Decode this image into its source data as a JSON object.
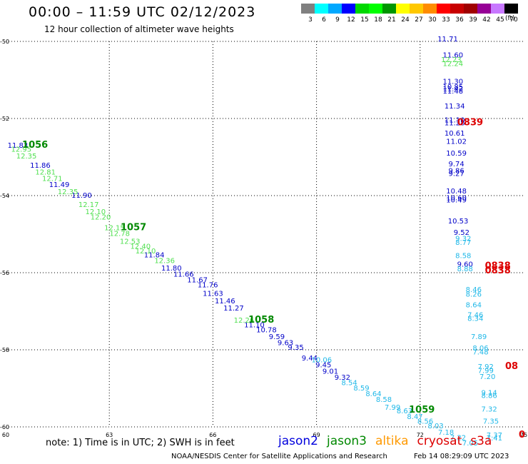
{
  "header": {
    "title": "00:00 – 11:59 UTC 02/12/2023",
    "subtitle": "12 hour collection of altimeter wave heights"
  },
  "colorbar": {
    "labels": [
      "3",
      "6",
      "9",
      "12",
      "15",
      "18",
      "21",
      "24",
      "27",
      "30",
      "33",
      "36",
      "39",
      "42",
      "45",
      "70"
    ],
    "colors": [
      "#808080",
      "#00ffff",
      "#00a8ff",
      "#0000ff",
      "#00d800",
      "#00ff00",
      "#009600",
      "#ffff00",
      "#ffc800",
      "#ff8c00",
      "#ff0000",
      "#c80000",
      "#a00000",
      "#960096",
      "#c878ff",
      "#000000"
    ],
    "unit": "(ft)"
  },
  "footer": {
    "note": "note: 1) Time is in UTC; 2) SWH is in feet",
    "credit": "NOAA/NESDIS Center for Satellite Applications and Research",
    "timestamp": "Feb 14 08:29:09 UTC 2023"
  },
  "legend": [
    {
      "name": "jason2",
      "color": "#0000dd"
    },
    {
      "name": "jason3",
      "color": "#008800"
    },
    {
      "name": "altika",
      "color": "#ff9900"
    },
    {
      "name": "cryosat",
      "color": "#dd0000"
    },
    {
      "name": "s3a",
      "color": "#dd0000"
    }
  ],
  "chart_data": {
    "type": "scatter",
    "xlim": [
      60,
      75
    ],
    "ylim": [
      -60,
      -50
    ],
    "x_ticks": [
      "60",
      "63",
      "66",
      "69",
      "72",
      "75"
    ],
    "y_ticks": [
      "-50",
      "-52",
      "-54",
      "-56",
      "-58",
      "-60"
    ],
    "grid": true,
    "series": [
      {
        "color": "#0000c8",
        "points": [
          {
            "x": 60.35,
            "y": -52.76,
            "v": "11.83"
          },
          {
            "x": 61.0,
            "y": -53.28,
            "v": "11.86"
          },
          {
            "x": 61.55,
            "y": -53.78,
            "v": "11.49"
          },
          {
            "x": 62.2,
            "y": -54.06,
            "v": "11.90"
          },
          {
            "x": 64.3,
            "y": -55.6,
            "v": "11.84"
          },
          {
            "x": 64.8,
            "y": -55.94,
            "v": "11.80"
          },
          {
            "x": 65.15,
            "y": -56.1,
            "v": "11.66"
          },
          {
            "x": 65.55,
            "y": -56.25,
            "v": "11.67"
          },
          {
            "x": 65.85,
            "y": -56.38,
            "v": "11.76"
          },
          {
            "x": 66.0,
            "y": -56.6,
            "v": "11.63"
          },
          {
            "x": 66.35,
            "y": -56.8,
            "v": "11.46"
          },
          {
            "x": 66.6,
            "y": -56.98,
            "v": "11.27"
          },
          {
            "x": 67.2,
            "y": -57.42,
            "v": "11.10"
          },
          {
            "x": 67.55,
            "y": -57.55,
            "v": "10.78"
          },
          {
            "x": 67.85,
            "y": -57.72,
            "v": "9.59"
          },
          {
            "x": 68.1,
            "y": -57.88,
            "v": "9.63"
          },
          {
            "x": 68.4,
            "y": -58.0,
            "v": "9.35"
          },
          {
            "x": 68.8,
            "y": -58.28,
            "v": "9.44"
          },
          {
            "x": 69.2,
            "y": -58.45,
            "v": "9.45"
          },
          {
            "x": 69.4,
            "y": -58.62,
            "v": "9.01"
          },
          {
            "x": 69.75,
            "y": -58.78,
            "v": "9.32"
          },
          {
            "x": 72.8,
            "y": -50.0,
            "v": "11.71"
          },
          {
            "x": 72.95,
            "y": -50.42,
            "v": "11.60"
          },
          {
            "x": 72.95,
            "y": -51.1,
            "v": "11.30"
          },
          {
            "x": 72.95,
            "y": -51.24,
            "v": "10.85"
          },
          {
            "x": 72.95,
            "y": -51.3,
            "v": "11.42"
          },
          {
            "x": 72.95,
            "y": -51.35,
            "v": "11.48"
          },
          {
            "x": 73.0,
            "y": -51.74,
            "v": "11.34"
          },
          {
            "x": 73.0,
            "y": -52.1,
            "v": "11.10"
          },
          {
            "x": 73.0,
            "y": -52.18,
            "v": "11.28"
          },
          {
            "x": 73.0,
            "y": -52.44,
            "v": "10.61"
          },
          {
            "x": 73.05,
            "y": -52.66,
            "v": "11.02"
          },
          {
            "x": 73.05,
            "y": -52.96,
            "v": "10.59"
          },
          {
            "x": 73.05,
            "y": -53.24,
            "v": "9.74"
          },
          {
            "x": 73.05,
            "y": -53.42,
            "v": "9.86"
          },
          {
            "x": 73.05,
            "y": -53.49,
            "v": "9.27"
          },
          {
            "x": 73.05,
            "y": -53.94,
            "v": "10.48"
          },
          {
            "x": 73.05,
            "y": -54.12,
            "v": "10.60"
          },
          {
            "x": 73.05,
            "y": -54.18,
            "v": "10.49"
          },
          {
            "x": 73.1,
            "y": -54.72,
            "v": "10.53"
          },
          {
            "x": 73.2,
            "y": -55.02,
            "v": "9.52"
          },
          {
            "x": 73.3,
            "y": -55.84,
            "v": "9.60"
          }
        ]
      },
      {
        "color": "#50e050",
        "points": [
          {
            "x": 60.45,
            "y": -52.86,
            "v": "12.95"
          },
          {
            "x": 60.6,
            "y": -53.04,
            "v": "12.35"
          },
          {
            "x": 61.15,
            "y": -53.45,
            "v": "12.81"
          },
          {
            "x": 61.35,
            "y": -53.62,
            "v": "12.71"
          },
          {
            "x": 61.8,
            "y": -53.96,
            "v": "12.35"
          },
          {
            "x": 62.4,
            "y": -54.3,
            "v": "12.17"
          },
          {
            "x": 62.6,
            "y": -54.48,
            "v": "12.10"
          },
          {
            "x": 62.75,
            "y": -54.62,
            "v": "12.20"
          },
          {
            "x": 63.15,
            "y": -54.9,
            "v": "12.15"
          },
          {
            "x": 63.3,
            "y": -55.05,
            "v": "12.78"
          },
          {
            "x": 63.6,
            "y": -55.25,
            "v": "12.53"
          },
          {
            "x": 63.9,
            "y": -55.38,
            "v": "12.40"
          },
          {
            "x": 64.05,
            "y": -55.5,
            "v": "12.10"
          },
          {
            "x": 64.6,
            "y": -55.75,
            "v": "12.36"
          },
          {
            "x": 66.9,
            "y": -57.3,
            "v": "12.26"
          },
          {
            "x": 72.9,
            "y": -50.54,
            "v": "12.23"
          },
          {
            "x": 72.95,
            "y": -50.64,
            "v": "12.24"
          }
        ]
      },
      {
        "color": "#20b8e8",
        "points": [
          {
            "x": 69.15,
            "y": -58.32,
            "v": "10.06"
          },
          {
            "x": 69.95,
            "y": -58.92,
            "v": "8.54"
          },
          {
            "x": 70.3,
            "y": -59.06,
            "v": "8.59"
          },
          {
            "x": 70.65,
            "y": -59.2,
            "v": "8.64"
          },
          {
            "x": 70.95,
            "y": -59.35,
            "v": "8.58"
          },
          {
            "x": 71.2,
            "y": -59.56,
            "v": "7.99"
          },
          {
            "x": 71.55,
            "y": -59.65,
            "v": "8.63"
          },
          {
            "x": 71.85,
            "y": -59.8,
            "v": "8.47"
          },
          {
            "x": 72.15,
            "y": -59.92,
            "v": "8.56"
          },
          {
            "x": 72.45,
            "y": -60.04,
            "v": "8.03"
          },
          {
            "x": 72.75,
            "y": -60.2,
            "v": "7.18"
          },
          {
            "x": 73.1,
            "y": -60.34,
            "v": "7.22"
          },
          {
            "x": 73.45,
            "y": -60.48,
            "v": "7.05"
          },
          {
            "x": 73.25,
            "y": -55.18,
            "v": "9.32"
          },
          {
            "x": 73.25,
            "y": -55.28,
            "v": "8.77"
          },
          {
            "x": 73.25,
            "y": -55.62,
            "v": "8.58"
          },
          {
            "x": 73.3,
            "y": -55.96,
            "v": "8.88"
          },
          {
            "x": 73.55,
            "y": -56.5,
            "v": "8.46"
          },
          {
            "x": 73.55,
            "y": -56.62,
            "v": "8.26"
          },
          {
            "x": 73.55,
            "y": -56.9,
            "v": "8.64"
          },
          {
            "x": 73.6,
            "y": -57.16,
            "v": "7.46"
          },
          {
            "x": 73.6,
            "y": -57.25,
            "v": "8.34"
          },
          {
            "x": 73.7,
            "y": -57.72,
            "v": "7.89"
          },
          {
            "x": 73.75,
            "y": -58.02,
            "v": "8.06"
          },
          {
            "x": 73.75,
            "y": -58.12,
            "v": "7.48"
          },
          {
            "x": 73.9,
            "y": -58.5,
            "v": "7.92"
          },
          {
            "x": 73.9,
            "y": -58.6,
            "v": "7.99"
          },
          {
            "x": 73.95,
            "y": -58.76,
            "v": "7.20"
          },
          {
            "x": 74.0,
            "y": -59.18,
            "v": "9.14"
          },
          {
            "x": 74.0,
            "y": -59.25,
            "v": "8.86"
          },
          {
            "x": 74.0,
            "y": -59.6,
            "v": "7.32"
          },
          {
            "x": 74.05,
            "y": -59.92,
            "v": "7.35"
          },
          {
            "x": 74.15,
            "y": -60.28,
            "v": "7.37"
          },
          {
            "x": 74.15,
            "y": -60.35,
            "v": "7.41"
          }
        ]
      }
    ],
    "passes": [
      {
        "label": "1056",
        "x": 60.85,
        "y": -52.76,
        "color": "#008800"
      },
      {
        "label": "1057",
        "x": 63.7,
        "y": -54.9,
        "color": "#008800"
      },
      {
        "label": "1058",
        "x": 67.4,
        "y": -57.3,
        "color": "#008800"
      },
      {
        "label": "1059",
        "x": 72.05,
        "y": -59.63,
        "color": "#008800"
      },
      {
        "label": "0839",
        "x": 73.45,
        "y": -52.18,
        "color": "#dd0000"
      },
      {
        "label": "0838",
        "x": 74.25,
        "y": -55.9,
        "color": "#dd0000"
      },
      {
        "label": "0838",
        "x": 74.25,
        "y": -56.02,
        "color": "#dd0000"
      },
      {
        "label": "08",
        "x": 74.65,
        "y": -58.5,
        "color": "#dd0000"
      },
      {
        "label": "0",
        "x": 74.95,
        "y": -60.28,
        "color": "#dd0000"
      }
    ]
  }
}
